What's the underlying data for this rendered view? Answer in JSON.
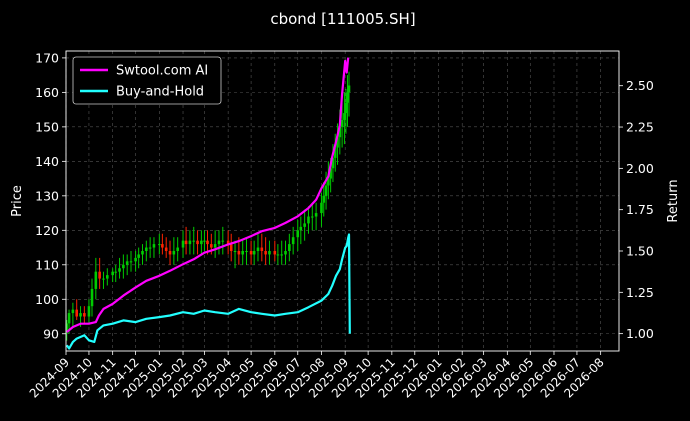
{
  "chart_data": {
    "type": "line",
    "title": "cbond [111005.SH]",
    "ylabel": "Price",
    "y2label": "Return",
    "xlabel": "",
    "xlim": [
      "2024-09-01",
      "2026-08-25"
    ],
    "ylim": [
      85,
      172
    ],
    "y2lim": [
      0.895,
      2.71
    ],
    "y_ticks": [
      90,
      100,
      110,
      120,
      130,
      140,
      150,
      160,
      170
    ],
    "y2_ticks": [
      "1.00",
      "1.25",
      "1.50",
      "1.75",
      "2.00",
      "2.25",
      "2.50"
    ],
    "x_ticks": [
      "2024-09",
      "2024-10",
      "2024-11",
      "2024-12",
      "2025-01",
      "2025-02",
      "2025-03",
      "2025-04",
      "2025-05",
      "2025-06",
      "2025-07",
      "2025-08",
      "2025-09",
      "2025-10",
      "2025-11",
      "2025-12",
      "2026-01",
      "2026-02",
      "2026-03",
      "2026-04",
      "2026-05",
      "2026-06",
      "2026-07",
      "2026-08"
    ],
    "grid": true,
    "legend_position": "top-left",
    "series": [
      {
        "name": "Swtool.com AI",
        "axis": "right",
        "color": "#ff00ff",
        "x": [
          "2024-09-02",
          "2024-09-10",
          "2024-09-20",
          "2024-10-01",
          "2024-10-10",
          "2024-10-14",
          "2024-10-20",
          "2024-11-01",
          "2024-11-15",
          "2024-12-01",
          "2024-12-15",
          "2025-01-01",
          "2025-01-15",
          "2025-02-01",
          "2025-02-15",
          "2025-03-01",
          "2025-03-15",
          "2025-04-01",
          "2025-04-15",
          "2025-05-01",
          "2025-05-15",
          "2025-06-01",
          "2025-06-15",
          "2025-07-01",
          "2025-07-15",
          "2025-07-25",
          "2025-08-01",
          "2025-08-10",
          "2025-08-15",
          "2025-08-20",
          "2025-08-25",
          "2025-08-28",
          "2025-09-01",
          "2025-09-03",
          "2025-09-05"
        ],
        "values": [
          1.01,
          1.04,
          1.06,
          1.06,
          1.07,
          1.11,
          1.15,
          1.18,
          1.23,
          1.28,
          1.32,
          1.35,
          1.38,
          1.42,
          1.45,
          1.49,
          1.51,
          1.54,
          1.56,
          1.59,
          1.62,
          1.64,
          1.67,
          1.71,
          1.76,
          1.81,
          1.88,
          1.95,
          2.07,
          2.16,
          2.26,
          2.45,
          2.65,
          2.58,
          2.67
        ]
      },
      {
        "name": "Buy-and-Hold",
        "axis": "right",
        "color": "#22ffff",
        "x": [
          "2024-09-02",
          "2024-09-05",
          "2024-09-10",
          "2024-09-15",
          "2024-09-25",
          "2024-10-01",
          "2024-10-08",
          "2024-10-12",
          "2024-10-20",
          "2024-11-01",
          "2024-11-15",
          "2024-12-01",
          "2024-12-15",
          "2025-01-01",
          "2025-01-15",
          "2025-02-01",
          "2025-02-15",
          "2025-03-01",
          "2025-03-15",
          "2025-04-01",
          "2025-04-15",
          "2025-05-01",
          "2025-05-15",
          "2025-06-01",
          "2025-06-15",
          "2025-07-01",
          "2025-07-15",
          "2025-08-01",
          "2025-08-10",
          "2025-08-15",
          "2025-08-20",
          "2025-08-25",
          "2025-08-28",
          "2025-09-01",
          "2025-09-03",
          "2025-09-05",
          "2025-09-06",
          "2025-09-07"
        ],
        "values": [
          0.93,
          0.91,
          0.95,
          0.97,
          0.99,
          0.96,
          0.95,
          1.02,
          1.05,
          1.06,
          1.08,
          1.07,
          1.09,
          1.1,
          1.11,
          1.13,
          1.12,
          1.14,
          1.13,
          1.12,
          1.15,
          1.13,
          1.12,
          1.11,
          1.12,
          1.13,
          1.16,
          1.2,
          1.24,
          1.29,
          1.35,
          1.39,
          1.45,
          1.52,
          1.53,
          1.58,
          1.6,
          1.0
        ]
      }
    ],
    "candles": {
      "axis": "left",
      "up_color": "#00cc00",
      "down_color": "#ff2200",
      "x": [
        "2024-09-02",
        "2024-09-05",
        "2024-09-10",
        "2024-09-15",
        "2024-09-20",
        "2024-09-25",
        "2024-10-01",
        "2024-10-05",
        "2024-10-10",
        "2024-10-15",
        "2024-10-20",
        "2024-10-25",
        "2024-11-01",
        "2024-11-05",
        "2024-11-10",
        "2024-11-15",
        "2024-11-20",
        "2024-11-25",
        "2024-12-01",
        "2024-12-05",
        "2024-12-10",
        "2024-12-15",
        "2024-12-20",
        "2024-12-25",
        "2025-01-01",
        "2025-01-05",
        "2025-01-10",
        "2025-01-15",
        "2025-01-20",
        "2025-01-25",
        "2025-02-01",
        "2025-02-05",
        "2025-02-10",
        "2025-02-15",
        "2025-02-20",
        "2025-02-25",
        "2025-03-01",
        "2025-03-05",
        "2025-03-10",
        "2025-03-15",
        "2025-03-20",
        "2025-03-25",
        "2025-04-01",
        "2025-04-05",
        "2025-04-10",
        "2025-04-15",
        "2025-04-20",
        "2025-04-25",
        "2025-05-01",
        "2025-05-05",
        "2025-05-10",
        "2025-05-15",
        "2025-05-20",
        "2025-05-25",
        "2025-06-01",
        "2025-06-05",
        "2025-06-10",
        "2025-06-15",
        "2025-06-20",
        "2025-06-25",
        "2025-07-01",
        "2025-07-05",
        "2025-07-10",
        "2025-07-15",
        "2025-07-20",
        "2025-07-25",
        "2025-08-01",
        "2025-08-04",
        "2025-08-07",
        "2025-08-10",
        "2025-08-13",
        "2025-08-16",
        "2025-08-19",
        "2025-08-22",
        "2025-08-25",
        "2025-08-28",
        "2025-08-31",
        "2025-09-02",
        "2025-09-04",
        "2025-09-06"
      ],
      "open": [
        91,
        93,
        96,
        97,
        95,
        96,
        95,
        98,
        103,
        108,
        106,
        106,
        107,
        108,
        108,
        109,
        110,
        111,
        111,
        112,
        113,
        114,
        115,
        115,
        116,
        116,
        115,
        114,
        113,
        114,
        115,
        117,
        116,
        117,
        117,
        116,
        117,
        117,
        116,
        115,
        116,
        117,
        117,
        116,
        114,
        114,
        113,
        114,
        114,
        113,
        114,
        115,
        114,
        113,
        114,
        113,
        113,
        113,
        114,
        116,
        118,
        120,
        121,
        122,
        124,
        124,
        125,
        128,
        130,
        133,
        135,
        138,
        141,
        144,
        147,
        150,
        152,
        154,
        157,
        160
      ],
      "high": [
        94,
        97,
        99,
        100,
        98,
        98,
        100,
        106,
        112,
        112,
        108,
        109,
        109,
        110,
        112,
        113,
        113,
        114,
        114,
        115,
        116,
        117,
        118,
        118,
        119,
        119,
        118,
        117,
        118,
        118,
        120,
        121,
        120,
        121,
        120,
        120,
        120,
        120,
        119,
        120,
        120,
        121,
        120,
        119,
        117,
        118,
        117,
        118,
        117,
        117,
        119,
        119,
        118,
        117,
        117,
        116,
        117,
        117,
        119,
        121,
        123,
        124,
        126,
        127,
        128,
        128,
        131,
        134,
        137,
        140,
        141,
        145,
        148,
        151,
        155,
        157,
        160,
        161,
        165,
        166
      ],
      "low": [
        88,
        90,
        92,
        94,
        92,
        93,
        93,
        95,
        100,
        103,
        103,
        104,
        105,
        105,
        106,
        106,
        107,
        108,
        108,
        109,
        110,
        111,
        112,
        112,
        113,
        113,
        112,
        110,
        110,
        111,
        112,
        113,
        113,
        113,
        113,
        113,
        114,
        113,
        113,
        112,
        113,
        113,
        113,
        111,
        109,
        110,
        110,
        110,
        110,
        110,
        111,
        111,
        110,
        110,
        111,
        110,
        110,
        110,
        111,
        113,
        114,
        116,
        117,
        119,
        120,
        120,
        121,
        124,
        126,
        129,
        131,
        134,
        137,
        139,
        142,
        144,
        145,
        148,
        150,
        153
      ],
      "close": [
        93,
        96,
        97,
        95,
        96,
        95,
        98,
        103,
        108,
        106,
        106,
        107,
        108,
        108,
        109,
        110,
        111,
        111,
        112,
        113,
        114,
        115,
        115,
        116,
        116,
        115,
        114,
        113,
        114,
        115,
        117,
        116,
        117,
        117,
        116,
        117,
        117,
        116,
        115,
        116,
        117,
        117,
        116,
        114,
        114,
        113,
        114,
        114,
        113,
        114,
        115,
        114,
        113,
        114,
        113,
        113,
        113,
        114,
        116,
        118,
        120,
        121,
        122,
        124,
        124,
        125,
        128,
        130,
        133,
        135,
        138,
        141,
        144,
        147,
        150,
        152,
        154,
        157,
        160,
        162
      ]
    }
  }
}
